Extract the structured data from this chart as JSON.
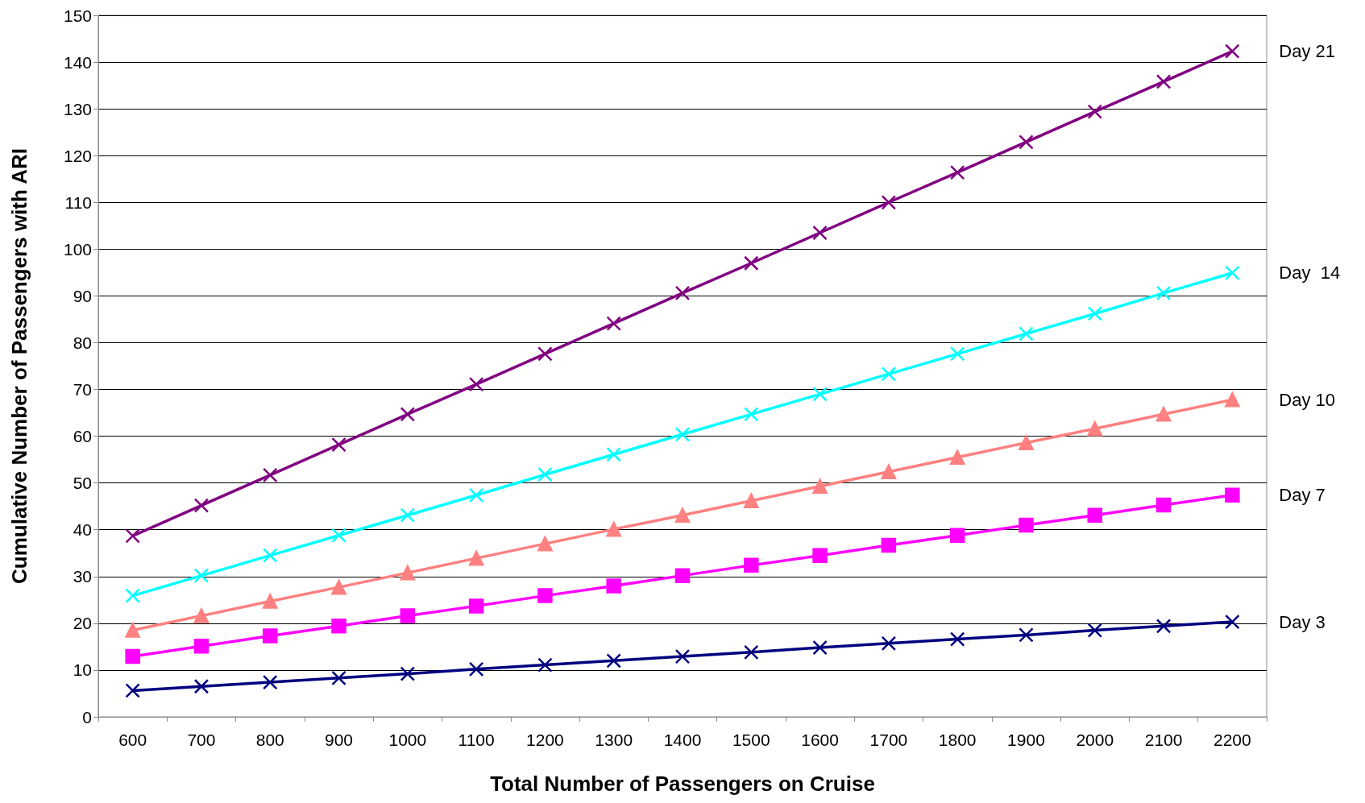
{
  "chart_data": {
    "type": "line",
    "xlabel": "Total Number of Passengers on Cruise",
    "ylabel": "Cumulative Number of Passengers with ARI",
    "categories": [
      "600",
      "700",
      "800",
      "900",
      "1000",
      "1100",
      "1200",
      "1300",
      "1400",
      "1500",
      "1600",
      "1700",
      "1800",
      "1900",
      "2000",
      "2100",
      "2200"
    ],
    "ylim": [
      0,
      150
    ],
    "yticks": [
      0,
      10,
      20,
      30,
      40,
      50,
      60,
      70,
      80,
      90,
      100,
      110,
      120,
      130,
      140,
      150
    ],
    "grid": "y",
    "legend": false,
    "series": [
      {
        "name": "Day 21",
        "color": "#800080",
        "marker": "cross",
        "values": [
          38.7,
          45.2,
          51.7,
          58.2,
          64.7,
          71.1,
          77.6,
          84.1,
          90.6,
          97.0,
          103.5,
          110.0,
          116.4,
          122.9,
          129.4,
          135.8,
          142.3
        ]
      },
      {
        "name": "Day  14",
        "color": "#00ffff",
        "marker": "cross",
        "values": [
          25.9,
          30.2,
          34.5,
          38.8,
          43.1,
          47.4,
          51.8,
          56.1,
          60.4,
          64.7,
          69.0,
          73.3,
          77.6,
          81.9,
          86.2,
          90.6,
          94.9
        ]
      },
      {
        "name": "Day 10",
        "color": "#ff8080",
        "marker": "triangle",
        "values": [
          18.5,
          21.6,
          24.7,
          27.7,
          30.8,
          33.9,
          37.0,
          40.1,
          43.1,
          46.2,
          49.3,
          52.4,
          55.5,
          58.6,
          61.6,
          64.7,
          67.8
        ]
      },
      {
        "name": "Day 7",
        "color": "#ff00ff",
        "marker": "square",
        "values": [
          12.9,
          15.1,
          17.3,
          19.4,
          21.6,
          23.7,
          25.9,
          28.0,
          30.2,
          32.4,
          34.5,
          36.7,
          38.8,
          41.0,
          43.1,
          45.3,
          47.4
        ]
      },
      {
        "name": "Day 3",
        "color": "#000080",
        "marker": "cross",
        "values": [
          5.6,
          6.5,
          7.4,
          8.3,
          9.2,
          10.2,
          11.1,
          12.0,
          12.9,
          13.8,
          14.8,
          15.7,
          16.6,
          17.5,
          18.5,
          19.4,
          20.3
        ]
      }
    ]
  }
}
